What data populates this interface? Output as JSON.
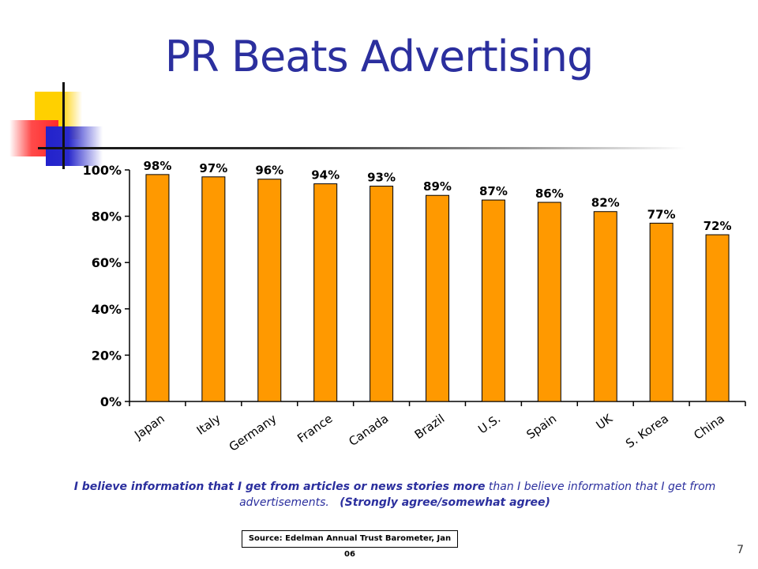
{
  "slide": {
    "title": "PR Beats Advertising",
    "caption_bold_1": "I believe information that I get from articles or news stories more",
    "caption_normal": " than I believe information that I get from advertisements.",
    "caption_bold_2": "(Strongly agree/somewhat agree)",
    "source": "Source: Edelman Annual Trust Barometer, Jan 06",
    "page_number": "7"
  },
  "chart_data": {
    "type": "bar",
    "title": "",
    "xlabel": "",
    "ylabel": "",
    "categories": [
      "Japan",
      "Italy",
      "Germany",
      "France",
      "Canada",
      "Brazil",
      "U.S.",
      "Spain",
      "UK",
      "S. Korea",
      "China"
    ],
    "values": [
      98,
      97,
      96,
      94,
      93,
      89,
      87,
      86,
      82,
      77,
      72
    ],
    "data_labels": [
      "98%",
      "97%",
      "96%",
      "94%",
      "93%",
      "89%",
      "87%",
      "86%",
      "82%",
      "77%",
      "72%"
    ],
    "ylim": [
      0,
      100
    ],
    "yticks": [
      0,
      20,
      40,
      60,
      80,
      100
    ],
    "ytick_labels": [
      "0%",
      "20%",
      "40%",
      "60%",
      "80%",
      "100%"
    ],
    "grid": false,
    "legend": "none",
    "bar_color": "#ff9900",
    "bar_edge_color": "#000000"
  }
}
